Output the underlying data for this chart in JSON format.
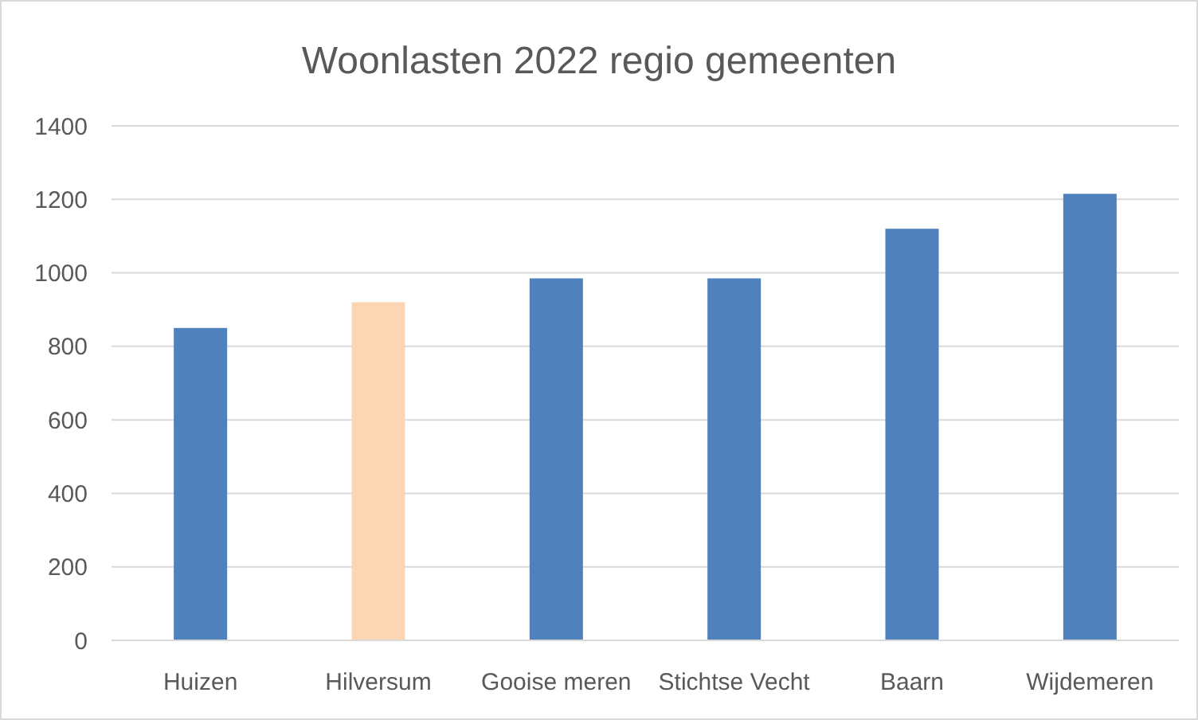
{
  "chart_data": {
    "type": "bar",
    "title": "Woonlasten 2022 regio gemeenten",
    "categories": [
      "Huizen",
      "Hilversum",
      "Gooise meren",
      "Stichtse Vecht",
      "Baarn",
      "Wijdemeren"
    ],
    "values": [
      850,
      920,
      985,
      985,
      1120,
      1215
    ],
    "colors": [
      "#4f81bd",
      "#fcd5b4",
      "#4f81bd",
      "#4f81bd",
      "#4f81bd",
      "#4f81bd"
    ],
    "ylim": [
      0,
      1400
    ],
    "yticks": [
      0,
      200,
      400,
      600,
      800,
      1000,
      1200,
      1400
    ],
    "grid": true
  }
}
